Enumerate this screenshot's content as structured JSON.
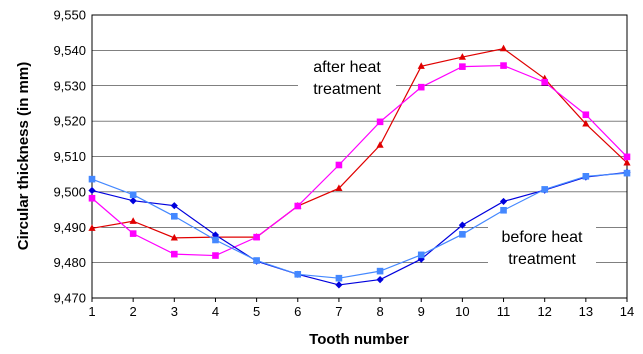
{
  "chart_data": {
    "type": "line",
    "xlabel": "Tooth number",
    "ylabel": "Circular thickness (in mm)",
    "x": [
      1,
      2,
      3,
      4,
      5,
      6,
      7,
      8,
      9,
      10,
      11,
      12,
      13,
      14
    ],
    "xlim": [
      1,
      14
    ],
    "ylim": [
      9.47,
      9.55
    ],
    "yticks": [
      9.47,
      9.48,
      9.49,
      9.5,
      9.51,
      9.52,
      9.53,
      9.54,
      9.55
    ],
    "ytick_labels": [
      "9,470",
      "9,480",
      "9,490",
      "9,500",
      "9,510",
      "9,520",
      "9,530",
      "9,540",
      "9,550"
    ],
    "xtick_labels": [
      "1",
      "2",
      "3",
      "4",
      "5",
      "6",
      "7",
      "8",
      "9",
      "10",
      "11",
      "12",
      "13",
      "14"
    ],
    "grid": "horizontal",
    "series": [
      {
        "color": "#e00000",
        "marker": "triangle",
        "values": [
          9.4897,
          9.4917,
          9.487,
          9.4872,
          9.4872,
          9.496,
          9.501,
          9.5132,
          9.5355,
          9.5381,
          9.5405,
          9.532,
          9.5192,
          9.5082
        ]
      },
      {
        "color": "#ff00ff",
        "marker": "square",
        "values": [
          9.4982,
          9.4882,
          9.4824,
          9.482,
          9.4872,
          9.496,
          9.5076,
          9.5198,
          9.5296,
          9.5354,
          9.5357,
          9.531,
          9.5218,
          9.5099
        ]
      },
      {
        "color": "#0000dd",
        "marker": "diamond",
        "values": [
          9.5004,
          9.4975,
          9.4961,
          9.4878,
          9.4804,
          9.4767,
          9.4737,
          9.4752,
          9.481,
          9.4906,
          9.4973,
          9.5005,
          9.5042,
          9.5055
        ]
      },
      {
        "color": "#4488ff",
        "marker": "square",
        "values": [
          9.5036,
          9.4992,
          9.4931,
          9.4864,
          9.4806,
          9.4767,
          9.4756,
          9.4776,
          9.4822,
          9.488,
          9.4948,
          9.5007,
          9.5044,
          9.5053
        ]
      }
    ],
    "annotations": [
      {
        "lines": [
          "after heat",
          "treatment"
        ]
      },
      {
        "lines": [
          "before heat",
          "treatment"
        ]
      }
    ]
  }
}
